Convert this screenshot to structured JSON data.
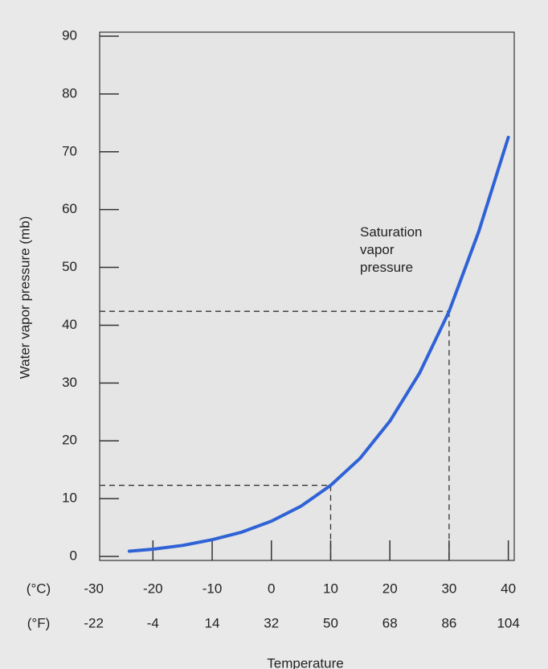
{
  "chart_data": {
    "type": "line",
    "y_label": "Water vapor pressure (mb)",
    "x_label": "Temperature",
    "x_unit_label": "(°C)",
    "x2_unit_label": "(°F)",
    "annotation": "Saturation\nvapor\npressure",
    "x": [
      -24,
      -20,
      -15,
      -10,
      -5,
      0,
      5,
      10,
      15,
      20,
      25,
      30,
      35,
      40
    ],
    "series": [
      {
        "name": "Saturation vapor pressure",
        "color": "#2f62d6",
        "values": [
          0.9,
          1.25,
          1.9,
          2.9,
          4.2,
          6.1,
          8.7,
          12.3,
          17.0,
          23.4,
          31.7,
          42.4,
          56.2,
          72.5
        ]
      }
    ],
    "guides": [
      {
        "x": 10,
        "y": 12.3
      },
      {
        "x": 30,
        "y": 42.4
      }
    ],
    "xlim": [
      -29,
      41
    ],
    "xticks": [
      -30,
      -20,
      -10,
      0,
      10,
      20,
      30,
      40
    ],
    "fahrenheit_labels": [
      -22,
      -4,
      14,
      32,
      50,
      68,
      86,
      104
    ],
    "ylim": [
      0,
      90
    ],
    "yticks": [
      0,
      10,
      20,
      30,
      40,
      50,
      60,
      70,
      80,
      90
    ]
  }
}
